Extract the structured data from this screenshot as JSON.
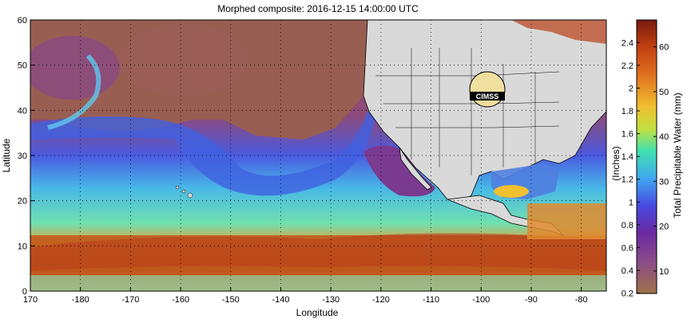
{
  "title": "Morphed composite: 2016-12-15 14:00:00 UTC",
  "map": {
    "xlabel": "Longitude",
    "ylabel": "Latitude",
    "x_ticks": [
      "170",
      "-180",
      "-170",
      "-160",
      "-150",
      "-140",
      "-130",
      "-120",
      "-110",
      "-100",
      "-90",
      "-80"
    ],
    "y_ticks": [
      "0",
      "10",
      "20",
      "30",
      "40",
      "50",
      "60"
    ],
    "lon_range": [
      170,
      285
    ],
    "lat_range": [
      0,
      60
    ],
    "grid": "dotted",
    "logo_text": "CIMSS"
  },
  "colorbar": {
    "label_mm": "Total Precipitable Water (mm)",
    "label_in": "(Inches)",
    "inch_ticks": [
      "2.4",
      "2.2",
      "2",
      "1.8",
      "1.6",
      "1.4",
      "1.2",
      "1",
      "0.8",
      "0.6",
      "0.4",
      "0.2"
    ],
    "mm_ticks": [
      "60",
      "50",
      "40",
      "30",
      "20",
      "10"
    ],
    "range_mm": [
      5,
      66
    ],
    "colors": [
      "#a0724a",
      "#8a4a8a",
      "#6a2aa0",
      "#4040e0",
      "#40a0f0",
      "#40e0a0",
      "#c0e040",
      "#f0c030",
      "#e07020",
      "#c04010",
      "#7a1a10"
    ]
  },
  "colors": {
    "land": "#d9d9d9",
    "dry_air": "#995e52",
    "moist_air": "#c85a1c"
  }
}
